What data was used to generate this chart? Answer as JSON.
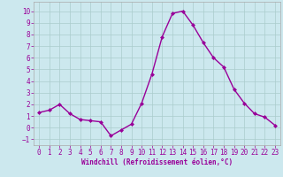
{
  "x": [
    0,
    1,
    2,
    3,
    4,
    5,
    6,
    7,
    8,
    9,
    10,
    11,
    12,
    13,
    14,
    15,
    16,
    17,
    18,
    19,
    20,
    21,
    22,
    23
  ],
  "y": [
    1.3,
    1.5,
    2.0,
    1.2,
    0.7,
    0.6,
    0.5,
    -0.7,
    -0.2,
    0.3,
    2.1,
    4.6,
    7.8,
    9.8,
    10.0,
    8.8,
    7.3,
    6.0,
    5.2,
    3.3,
    2.1,
    1.2,
    0.9,
    0.2
  ],
  "line_color": "#990099",
  "marker": "D",
  "marker_size": 2,
  "line_width": 1.0,
  "bg_color": "#cce8ee",
  "grid_color": "#aacccc",
  "xlabel": "Windchill (Refroidissement éolien,°C)",
  "xlabel_color": "#990099",
  "tick_color": "#990099",
  "spine_color": "#aaaaaa",
  "ylim": [
    -1.5,
    10.8
  ],
  "xlim": [
    -0.5,
    23.5
  ],
  "yticks": [
    -1,
    0,
    1,
    2,
    3,
    4,
    5,
    6,
    7,
    8,
    9,
    10
  ],
  "xticks": [
    0,
    1,
    2,
    3,
    4,
    5,
    6,
    7,
    8,
    9,
    10,
    11,
    12,
    13,
    14,
    15,
    16,
    17,
    18,
    19,
    20,
    21,
    22,
    23
  ],
  "tick_fontsize": 5.5,
  "xlabel_fontsize": 5.5
}
